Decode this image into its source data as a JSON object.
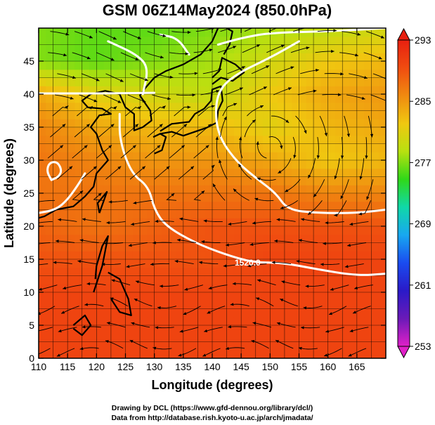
{
  "chart_data": {
    "type": "heatmap",
    "title": "GSM 06Z14May2024 (850.0hPa)",
    "xlabel": "Longitude (degrees)",
    "ylabel": "Latitude  (degrees)",
    "xlim": [
      110,
      170
    ],
    "ylim": [
      0,
      50
    ],
    "x_ticks": [
      "110",
      "115",
      "120",
      "125",
      "130",
      "135",
      "140",
      "145",
      "150",
      "155",
      "160",
      "165"
    ],
    "y_ticks": [
      "0",
      "5",
      "10",
      "15",
      "20",
      "25",
      "30",
      "35",
      "40",
      "45"
    ],
    "colorbar": {
      "min": 253,
      "max": 293,
      "ticks": [
        "253",
        "261",
        "269",
        "277",
        "285",
        "293"
      ],
      "colors": [
        "#e020c8",
        "#6a1ab8",
        "#2a1ac8",
        "#1a4cf0",
        "#18a8f0",
        "#10d8a8",
        "#30d818",
        "#b8e010",
        "#f0c810",
        "#f08a10",
        "#f04c10",
        "#e82010"
      ]
    },
    "temperature_field": {
      "units": "K",
      "description_grid_lon": [
        110,
        120,
        130,
        140,
        150,
        160,
        170
      ],
      "description_grid_lat": [
        50,
        45,
        40,
        35,
        30,
        25,
        20,
        15,
        10,
        5,
        0
      ],
      "values": [
        [
          277,
          276,
          276,
          277,
          278,
          279,
          280
        ],
        [
          277,
          276,
          277,
          278,
          280,
          282,
          283
        ],
        [
          284,
          281,
          280,
          279,
          282,
          284,
          285
        ],
        [
          286,
          284,
          283,
          283,
          281,
          283,
          284
        ],
        [
          287,
          286,
          285,
          285,
          284,
          282,
          283
        ],
        [
          287,
          287,
          287,
          287,
          287,
          286,
          286
        ],
        [
          288,
          287,
          288,
          289,
          289,
          289,
          289
        ],
        [
          289,
          289,
          289,
          289,
          290,
          290,
          290
        ],
        [
          290,
          290,
          290,
          290,
          290,
          290,
          290
        ],
        [
          290,
          290,
          290,
          290,
          290,
          290,
          290
        ],
        [
          290,
          290,
          290,
          290,
          290,
          290,
          290
        ]
      ]
    },
    "contour_label": "1520.0"
  },
  "footer": {
    "credit_line1": "Drawing by DCL (https://www.gfd-dennou.org/library/dcl/)",
    "credit_line2": "Data from http://database.rish.kyoto-u.ac.jp/arch/jmadata/"
  }
}
